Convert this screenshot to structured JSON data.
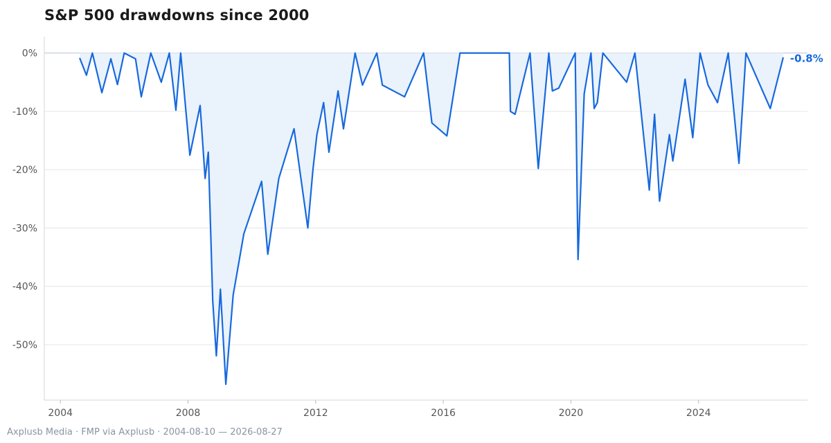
{
  "title": "S&P 500 drawdowns since 2000",
  "footer": "Axplusb Media · FMP via Axplusb · 2004-08-10 — 2026-08-27",
  "chart_data": {
    "type": "area",
    "title": "S&P 500 drawdowns since 2000",
    "xlabel": "",
    "ylabel": "",
    "x_range": [
      "2003-07-01",
      "2027-06-01"
    ],
    "y_range": [
      -59.5,
      2.8
    ],
    "x_tick_labels": [
      "2004",
      "2008",
      "2012",
      "2016",
      "2020",
      "2024"
    ],
    "y_ticks": [
      0,
      -10,
      -20,
      -30,
      -40,
      -50
    ],
    "y_tick_labels": [
      "0%",
      "-10%",
      "-20%",
      "-30%",
      "-40%",
      "-50%"
    ],
    "grid": "horizontal",
    "line_color": "#1769dd",
    "fill_color": "#eaf2fc",
    "end_label": "-0.8%",
    "series": [
      {
        "points": [
          [
            "2004-08-10",
            -0.9
          ],
          [
            "2004-10-25",
            -3.8
          ],
          [
            "2005-01-01",
            0
          ],
          [
            "2005-04-20",
            -6.8
          ],
          [
            "2005-08-01",
            -1
          ],
          [
            "2005-10-15",
            -5.4
          ],
          [
            "2006-01-01",
            0
          ],
          [
            "2006-05-10",
            -1
          ],
          [
            "2006-07-15",
            -7.5
          ],
          [
            "2006-11-01",
            0
          ],
          [
            "2007-03-01",
            -5
          ],
          [
            "2007-06-01",
            0
          ],
          [
            "2007-08-15",
            -9.8
          ],
          [
            "2007-10-09",
            0
          ],
          [
            "2008-01-22",
            -17.5
          ],
          [
            "2008-05-19",
            -9
          ],
          [
            "2008-07-15",
            -21.5
          ],
          [
            "2008-08-20",
            -17
          ],
          [
            "2008-10-10",
            -42.5
          ],
          [
            "2008-11-20",
            -51.9
          ],
          [
            "2009-01-06",
            -40.5
          ],
          [
            "2009-03-09",
            -56.8
          ],
          [
            "2009-06-01",
            -41.5
          ],
          [
            "2009-10-01",
            -31
          ],
          [
            "2010-04-23",
            -22
          ],
          [
            "2010-07-02",
            -34.5
          ],
          [
            "2010-11-05",
            -21.5
          ],
          [
            "2011-04-29",
            -13
          ],
          [
            "2011-10-03",
            -30
          ],
          [
            "2011-12-01",
            -20
          ],
          [
            "2012-01-15",
            -14
          ],
          [
            "2012-04-01",
            -8.5
          ],
          [
            "2012-06-01",
            -17
          ],
          [
            "2012-09-14",
            -6.5
          ],
          [
            "2012-11-15",
            -13
          ],
          [
            "2013-03-28",
            0
          ],
          [
            "2013-06-20",
            -5.5
          ],
          [
            "2013-12-01",
            0
          ],
          [
            "2014-02-03",
            -5.5
          ],
          [
            "2014-10-15",
            -7.5
          ],
          [
            "2015-05-21",
            0
          ],
          [
            "2015-08-24",
            -12
          ],
          [
            "2016-02-11",
            -14.2
          ],
          [
            "2016-07-11",
            0
          ],
          [
            "2018-01-26",
            0
          ],
          [
            "2018-02-08",
            -10
          ],
          [
            "2018-04-02",
            -10.5
          ],
          [
            "2018-09-20",
            0
          ],
          [
            "2018-12-24",
            -19.8
          ],
          [
            "2019-04-23",
            0
          ],
          [
            "2019-06-03",
            -6.5
          ],
          [
            "2019-08-15",
            -6
          ],
          [
            "2020-02-19",
            0
          ],
          [
            "2020-03-23",
            -35.4
          ],
          [
            "2020-06-01",
            -7
          ],
          [
            "2020-08-18",
            0
          ],
          [
            "2020-09-23",
            -9.5
          ],
          [
            "2020-10-30",
            -8.5
          ],
          [
            "2021-01-01",
            0
          ],
          [
            "2021-09-30",
            -5
          ],
          [
            "2022-01-03",
            0
          ],
          [
            "2022-06-16",
            -23.5
          ],
          [
            "2022-08-16",
            -10.5
          ],
          [
            "2022-10-12",
            -25.4
          ],
          [
            "2023-02-02",
            -14
          ],
          [
            "2023-03-13",
            -18.5
          ],
          [
            "2023-07-31",
            -4.5
          ],
          [
            "2023-10-27",
            -14.5
          ],
          [
            "2024-01-19",
            0
          ],
          [
            "2024-04-19",
            -5.5
          ],
          [
            "2024-08-05",
            -8.5
          ],
          [
            "2024-12-06",
            0
          ],
          [
            "2025-04-08",
            -18.9
          ],
          [
            "2025-06-27",
            0
          ],
          [
            "2026-04-01",
            -9.5
          ],
          [
            "2026-08-27",
            -0.8
          ]
        ]
      }
    ]
  }
}
